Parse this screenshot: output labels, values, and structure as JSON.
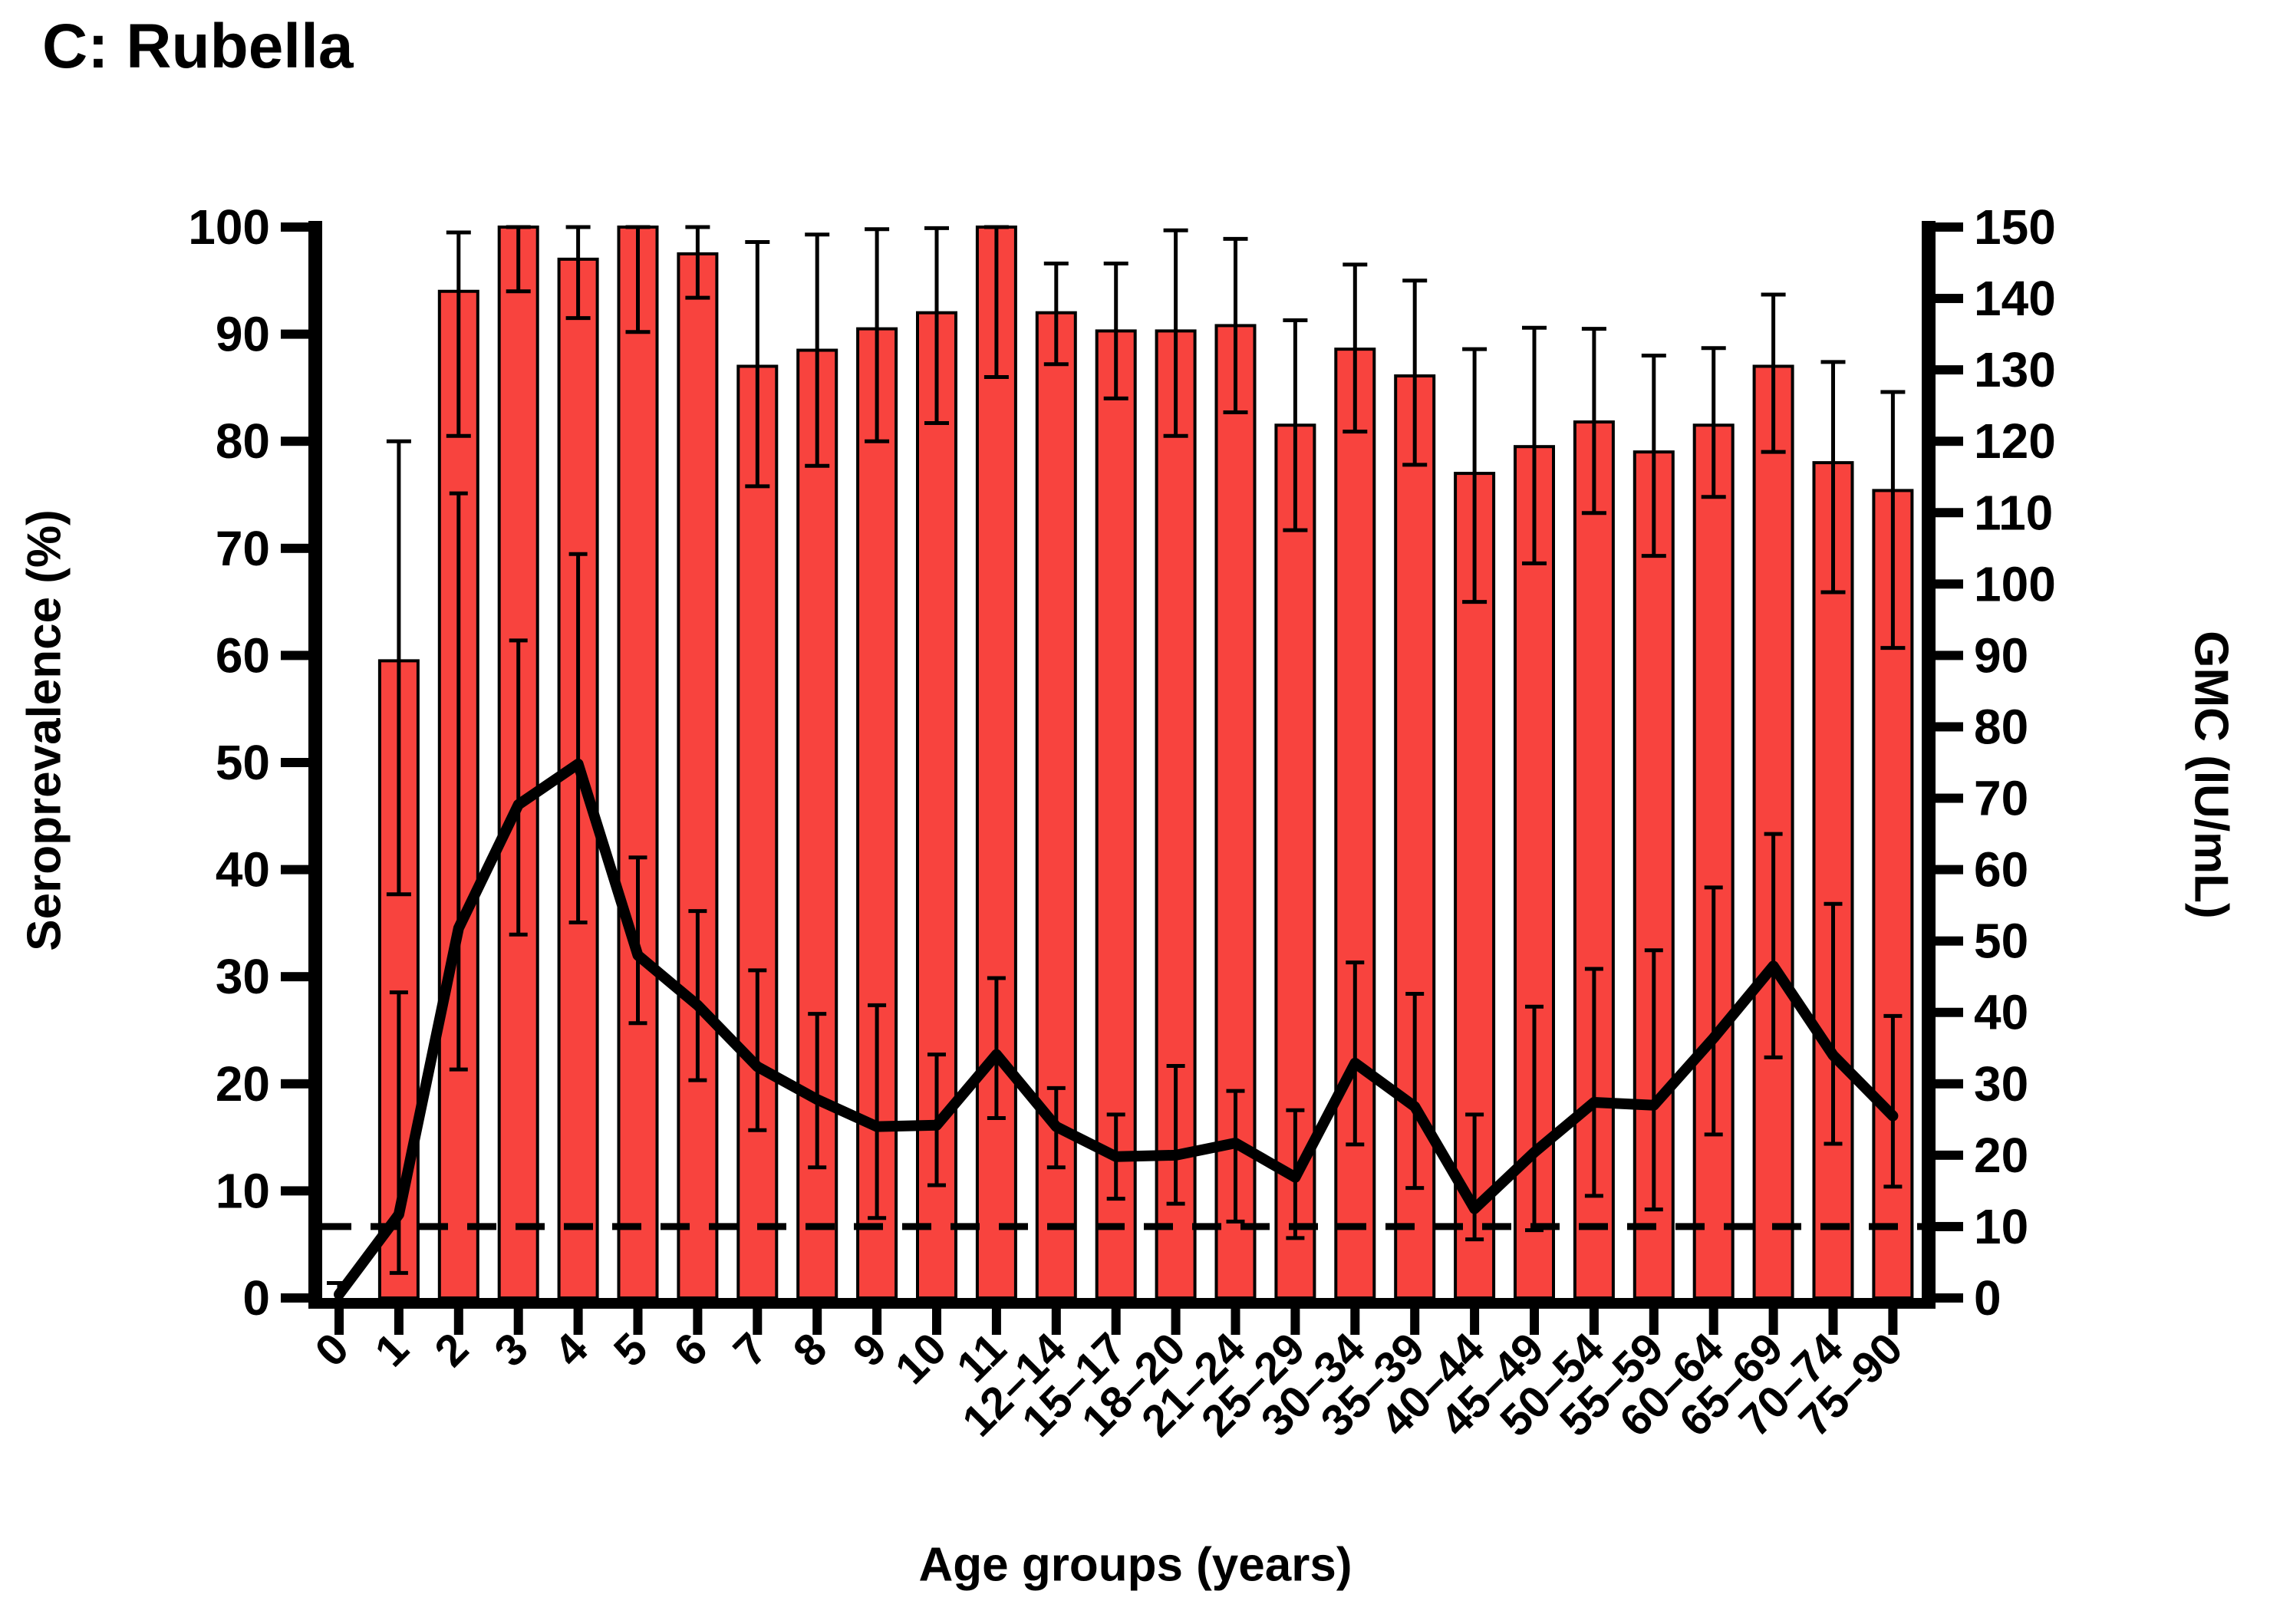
{
  "figure": {
    "title": "C: Rubella"
  },
  "chart_data": {
    "type": "bar",
    "subtype": "bar-with-line-overlay",
    "title": "C: Rubella",
    "xlabel": "Age groups (years)",
    "ylabel_left": "Seroprevalence (%)",
    "ylabel_right": "GMC (IU/mL)",
    "ylim_left": [
      0,
      100
    ],
    "ylim_right": [
      0,
      150
    ],
    "yticks_left": [
      0,
      10,
      20,
      30,
      40,
      50,
      60,
      70,
      80,
      90,
      100
    ],
    "yticks_right": [
      0,
      10,
      20,
      30,
      40,
      50,
      60,
      70,
      80,
      90,
      100,
      110,
      120,
      130,
      140,
      150
    ],
    "grid": false,
    "legend": "none",
    "bar_color": "#F8433E",
    "line_color": "#000000",
    "cutoff_line": {
      "value": 10,
      "axis": "right",
      "style": "dashed",
      "color": "#000000"
    },
    "categories": [
      "0",
      "1",
      "2",
      "3",
      "4",
      "5",
      "6",
      "7",
      "8",
      "9",
      "10",
      "11",
      "12–14",
      "15–17",
      "18–20",
      "21–24",
      "25–29",
      "30–34",
      "35–39",
      "40–44",
      "45–49",
      "50–54",
      "55–59",
      "60–64",
      "65–69",
      "70–74",
      "75–90"
    ],
    "series": [
      {
        "name": "Seroprevalence (%)",
        "axis": "left",
        "render": "bars",
        "values": [
          0,
          59.5,
          94,
          100,
          97,
          100,
          97.5,
          87,
          88.5,
          90.5,
          92,
          100,
          92,
          90.3,
          90.3,
          90.8,
          81.5,
          88.6,
          86.1,
          77,
          79.5,
          81.8,
          79,
          81.5,
          87,
          78,
          75.4
        ],
        "ci_low": [
          0,
          37.7,
          80.5,
          94,
          91.5,
          90.2,
          93.4,
          75.8,
          77.7,
          80,
          81.7,
          86,
          87.2,
          84,
          80.5,
          82.7,
          71.7,
          80.9,
          77.8,
          65,
          68.6,
          73.3,
          69.3,
          74.8,
          79,
          65.9,
          60.7
        ],
        "ci_high": [
          1.4,
          80,
          99.5,
          100,
          100,
          100,
          100,
          98.6,
          99.3,
          99.8,
          99.9,
          100,
          96.6,
          96.6,
          99.7,
          98.9,
          91.3,
          96.5,
          95,
          88.6,
          90.6,
          90.5,
          88,
          88.7,
          93.7,
          87.4,
          84.6
        ]
      },
      {
        "name": "GMC (IU/mL)",
        "axis": "right",
        "render": "line",
        "values": [
          0.5,
          11.7,
          51.8,
          69.1,
          74.8,
          48,
          41,
          32.4,
          27.8,
          24,
          24.2,
          34.1,
          24,
          19.8,
          20,
          21.7,
          16.9,
          32.9,
          26.8,
          12.5,
          20.4,
          27.4,
          27,
          36.4,
          46.5,
          34,
          25.5
        ],
        "ci_low": [
          null,
          3.5,
          32,
          50.9,
          52.6,
          38.5,
          30.5,
          23.5,
          18.3,
          11.2,
          15.8,
          25.2,
          18.3,
          13.9,
          13.2,
          10.7,
          8.4,
          21.5,
          15.4,
          8.2,
          9.5,
          14.3,
          12.4,
          22.9,
          33.7,
          21.6,
          15.6
        ],
        "ci_high": [
          null,
          42.8,
          112.7,
          92.1,
          104.2,
          61.7,
          54.2,
          45.9,
          39.8,
          41,
          34.1,
          44.8,
          29.4,
          25.7,
          32.5,
          29,
          26.3,
          47,
          42.6,
          25.7,
          40.8,
          46.1,
          48.7,
          57.5,
          65,
          55.2,
          39.5
        ]
      }
    ]
  }
}
